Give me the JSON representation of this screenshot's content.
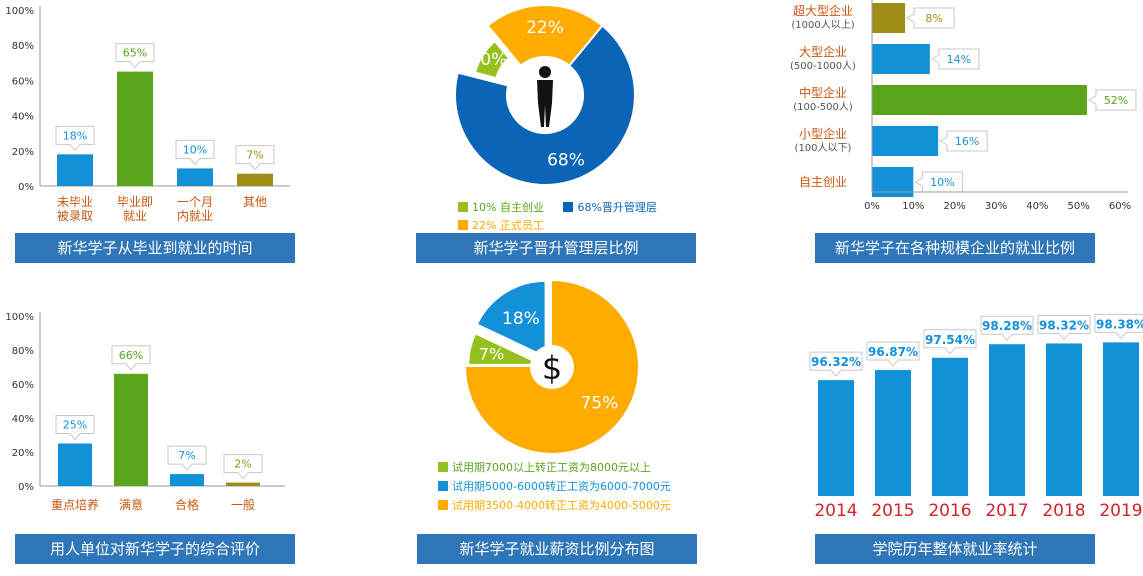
{
  "colors": {
    "blue": "#1391d8",
    "green": "#5aa51b",
    "olive": "#a08d18",
    "orange": "#ffab00",
    "darkblue": "#0b64b5",
    "lime": "#95c11f",
    "red": "#d0232a",
    "caption_bg": "#2e76b8",
    "label_orange": "#c8560f"
  },
  "chart_data": [
    {
      "id": "time_to_employment",
      "type": "bar",
      "title": "新华学子从毕业到就业的时间",
      "categories": [
        "未毕业\n被录取",
        "毕业即\n就业",
        "一个月\n内就业",
        "其他"
      ],
      "values": [
        18,
        65,
        10,
        7
      ],
      "value_labels": [
        "18%",
        "65%",
        "10%",
        "7%"
      ],
      "bar_colors": [
        "#1391d8",
        "#5aa51b",
        "#1391d8",
        "#a08d18"
      ],
      "yticks": [
        "100%",
        "80%",
        "60%",
        "40%",
        "20%",
        "0%"
      ],
      "ylim": [
        0,
        100
      ]
    },
    {
      "id": "management_promotion",
      "type": "pie",
      "title": "新华学子晋升管理层比例",
      "slices": [
        {
          "label": "10% 自主创业",
          "value": 10,
          "text": "10%",
          "color": "#95c11f"
        },
        {
          "label": "68%晋升管理层",
          "value": 68,
          "text": "68%",
          "color": "#0b64b5"
        },
        {
          "label": "22% 正式员工",
          "value": 22,
          "text": "22%",
          "color": "#ffab00"
        }
      ]
    },
    {
      "id": "company_scale",
      "type": "bar",
      "orientation": "horizontal",
      "title": "新华学子在各种规模企业的就业比例",
      "categories": [
        {
          "name": "超大型企业",
          "sub": "(1000人以上)"
        },
        {
          "name": "大型企业",
          "sub": "(500-1000人)"
        },
        {
          "name": "中型企业",
          "sub": "(100-500人)"
        },
        {
          "name": "小型企业",
          "sub": "(100人以下)"
        },
        {
          "name": "自主创业",
          "sub": ""
        }
      ],
      "values": [
        8,
        14,
        52,
        16,
        10
      ],
      "value_labels": [
        "8%",
        "14%",
        "52%",
        "16%",
        "10%"
      ],
      "bar_colors": [
        "#a08d18",
        "#1391d8",
        "#5aa51b",
        "#1391d8",
        "#1391d8"
      ],
      "xticks": [
        "0%",
        "10%",
        "20%",
        "30%",
        "40%",
        "50%",
        "60%"
      ],
      "xlim": [
        0,
        60
      ]
    },
    {
      "id": "employer_evaluation",
      "type": "bar",
      "title": "用人单位对新华学子的综合评价",
      "categories": [
        "重点培养",
        "满意",
        "合格",
        "一般"
      ],
      "values": [
        25,
        66,
        7,
        2
      ],
      "value_labels": [
        "25%",
        "66%",
        "7%",
        "2%"
      ],
      "bar_colors": [
        "#1391d8",
        "#5aa51b",
        "#1391d8",
        "#a08d18"
      ],
      "yticks": [
        "100%",
        "80%",
        "60%",
        "40%",
        "20%",
        "0%"
      ],
      "ylim": [
        0,
        100
      ]
    },
    {
      "id": "salary_distribution",
      "type": "pie",
      "title": "新华学子就业薪资比例分布图",
      "center_symbol": "$",
      "slices": [
        {
          "label": "试用期7000以上转正工资为8000元以上",
          "value": 7,
          "text": "7%",
          "color": "#95c11f"
        },
        {
          "label": "试用期5000-6000转正工资为6000-7000元",
          "value": 18,
          "text": "18%",
          "color": "#1391d8"
        },
        {
          "label": "试用期3500-4000转正工资为4000-5000元",
          "value": 75,
          "text": "75%",
          "color": "#ffab00"
        }
      ]
    },
    {
      "id": "yearly_employment_rate",
      "type": "bar",
      "title": "学院历年整体就业率统计",
      "categories": [
        "2014",
        "2015",
        "2016",
        "2017",
        "2018",
        "2019"
      ],
      "values": [
        96.32,
        96.87,
        97.54,
        98.28,
        98.32,
        98.38
      ],
      "value_labels": [
        "96.32%",
        "96.87%",
        "97.54%",
        "98.28%",
        "98.32%",
        "98.38%"
      ],
      "bar_color": "#1391d8",
      "year_color": "#d0232a"
    }
  ]
}
